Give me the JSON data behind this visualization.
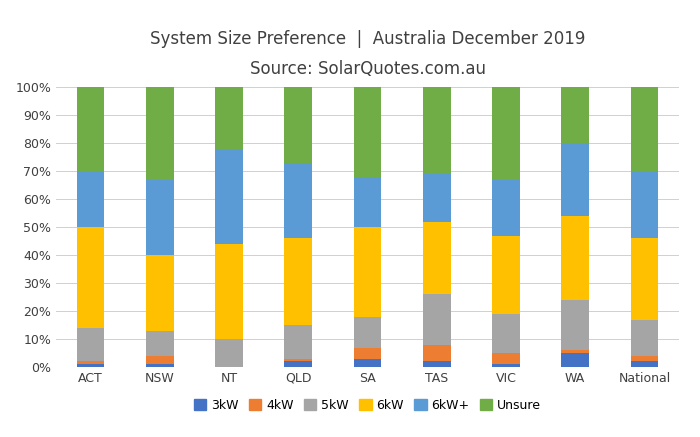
{
  "categories": [
    "ACT",
    "NSW",
    "NT",
    "QLD",
    "SA",
    "TAS",
    "VIC",
    "WA",
    "National"
  ],
  "series": {
    "3kW": [
      1,
      1,
      0,
      2,
      3,
      2,
      1,
      5,
      2
    ],
    "4kW": [
      1,
      3,
      0,
      1,
      4,
      6,
      4,
      1,
      2
    ],
    "5kW": [
      12,
      9,
      10,
      12,
      11,
      18,
      14,
      18,
      13
    ],
    "6kW": [
      36,
      27,
      34,
      31,
      32,
      26,
      28,
      30,
      29
    ],
    "6kW+": [
      20,
      27,
      34,
      27,
      18,
      17,
      20,
      26,
      24
    ],
    "Unsure": [
      30,
      33,
      22,
      27,
      32,
      31,
      33,
      20,
      30
    ]
  },
  "colors": {
    "3kW": "#4472c4",
    "4kW": "#ed7d31",
    "5kW": "#a5a5a5",
    "6kW": "#ffc000",
    "6kW+": "#5b9bd5",
    "Unsure": "#70ad47"
  },
  "title_line1": "System Size Preference  |  Australia December 2019",
  "title_line2": "Source: SolarQuotes.com.au",
  "ylim": [
    0,
    100
  ],
  "ytick_labels": [
    "0%",
    "10%",
    "20%",
    "30%",
    "40%",
    "50%",
    "60%",
    "70%",
    "80%",
    "90%",
    "100%"
  ],
  "background_color": "#ffffff",
  "grid_color": "#d0d0d0",
  "title_fontsize": 12,
  "subtitle_fontsize": 12,
  "legend_fontsize": 9,
  "tick_fontsize": 9,
  "bar_width": 0.4
}
